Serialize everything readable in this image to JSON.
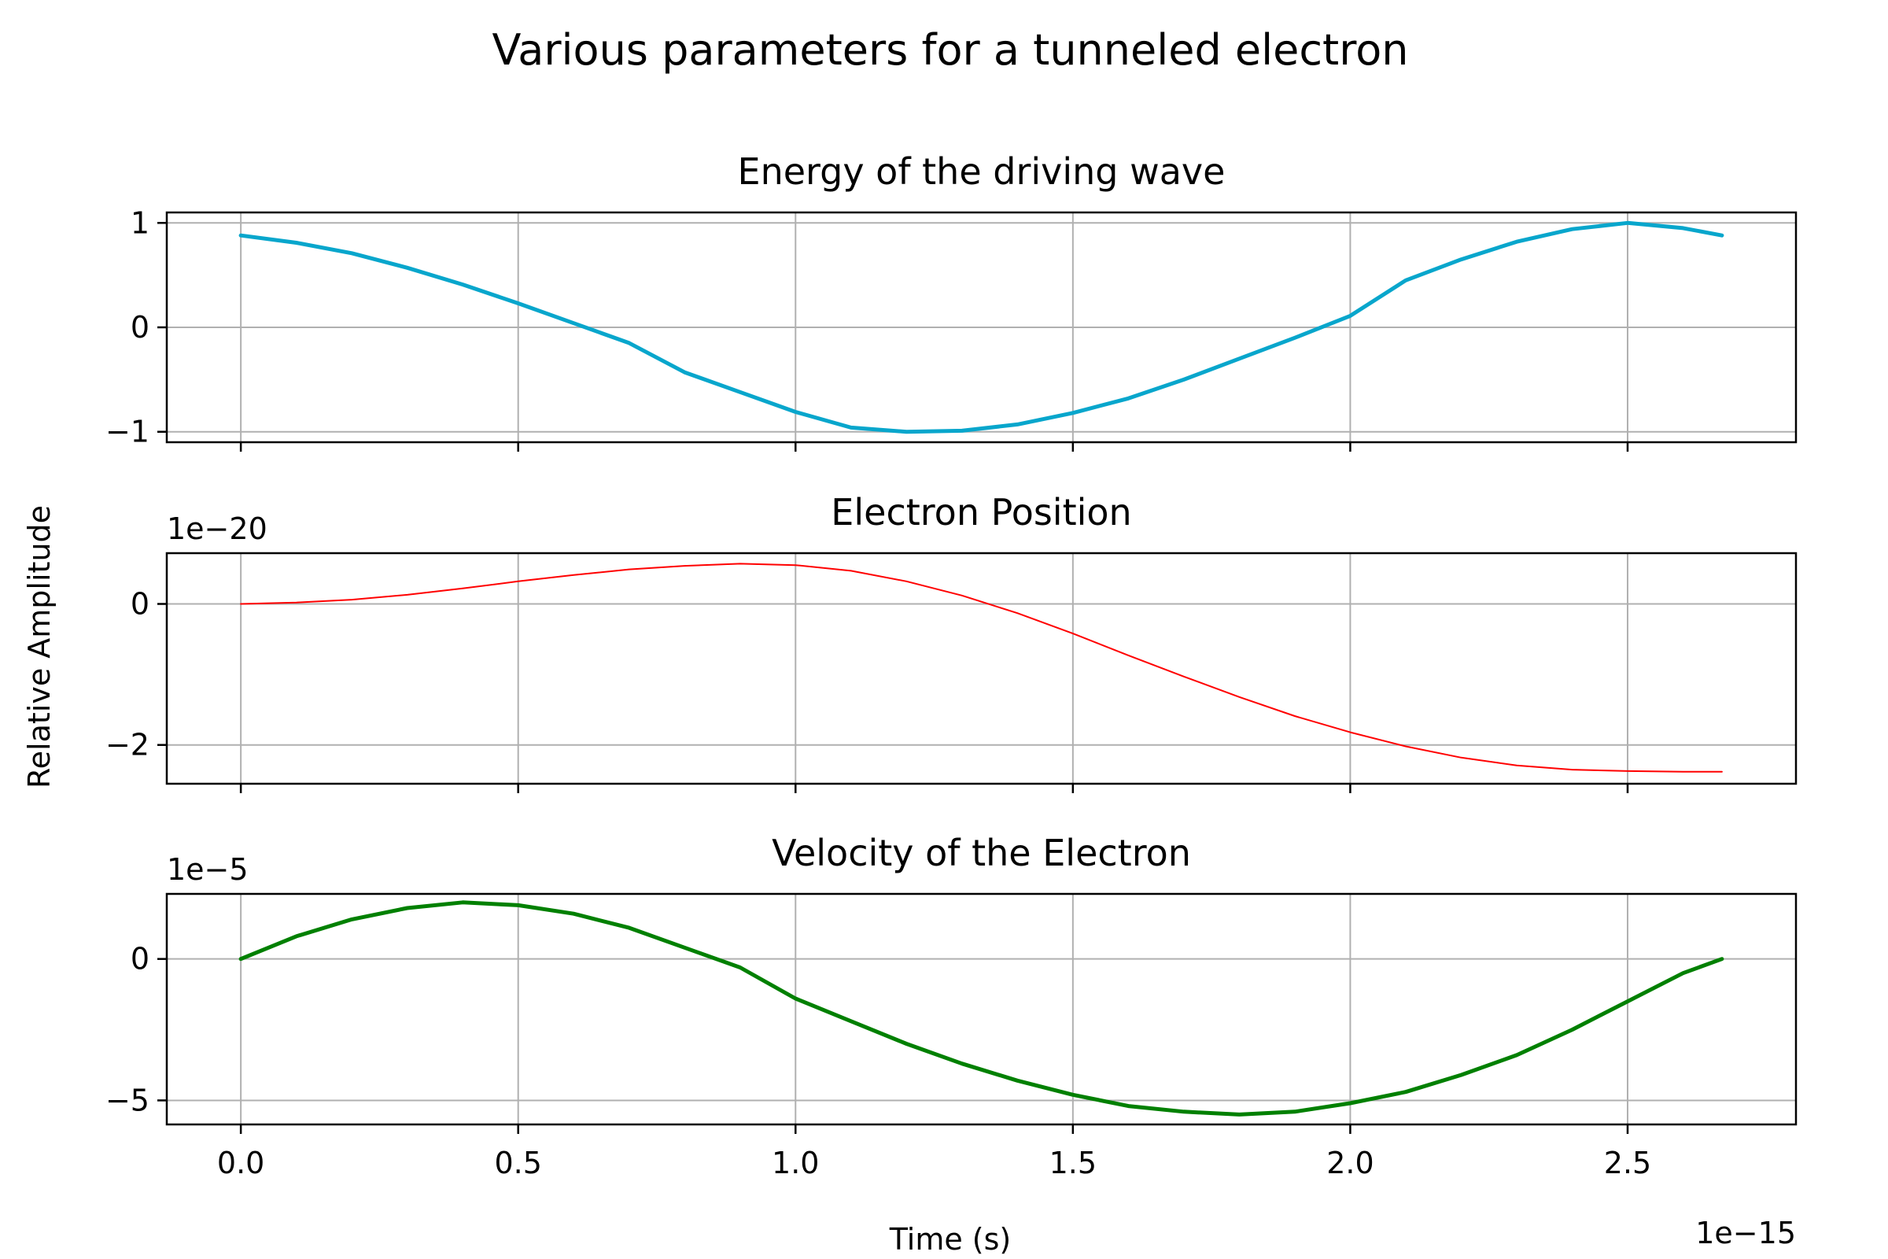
{
  "figure": {
    "suptitle": "Various parameters for a tunneled electron",
    "ylabel": "Relative Amplitude",
    "xlabel": "Time (s)",
    "x_offset_label": "1e−15"
  },
  "chart_data": [
    {
      "type": "line",
      "title": "Energy of the driving wave",
      "offset_label": "",
      "color": "#08a6cc",
      "xlim": [
        -0.1335,
        2.8035
      ],
      "ylim": [
        -1.1,
        1.1
      ],
      "xticks": [
        0.0,
        0.5,
        1.0,
        1.5,
        2.0,
        2.5
      ],
      "xtick_labels": [
        "0.0",
        "0.5",
        "1.0",
        "1.5",
        "2.0",
        "2.5"
      ],
      "yticks": [
        -1,
        0,
        1
      ],
      "ytick_labels": [
        "−1",
        "0",
        "1"
      ],
      "grid": true,
      "series": [
        {
          "x": [
            0.0,
            0.1,
            0.2,
            0.3,
            0.4,
            0.5,
            0.6,
            0.7,
            0.8,
            0.9,
            1.0,
            1.1,
            1.2,
            1.3,
            1.4,
            1.5,
            1.6,
            1.7,
            1.8,
            1.9,
            2.0,
            2.1,
            2.2,
            2.3,
            2.4,
            2.5,
            2.6,
            2.67
          ],
          "y": [
            0.88,
            0.81,
            0.71,
            0.57,
            0.41,
            0.23,
            0.04,
            -0.15,
            -0.43,
            -0.62,
            -0.81,
            -0.96,
            -1.0,
            -0.99,
            -0.93,
            -0.82,
            -0.68,
            -0.5,
            -0.3,
            -0.1,
            0.11,
            0.45,
            0.65,
            0.82,
            0.94,
            1.0,
            0.95,
            0.88
          ]
        }
      ]
    },
    {
      "type": "line",
      "title": "Electron Position",
      "offset_label": "1e−20",
      "color": "#ff0000",
      "xlim": [
        -0.1335,
        2.8035
      ],
      "ylim": [
        -2.55,
        0.72
      ],
      "xticks": [
        0.0,
        0.5,
        1.0,
        1.5,
        2.0,
        2.5
      ],
      "xtick_labels": [
        "0.0",
        "0.5",
        "1.0",
        "1.5",
        "2.0",
        "2.5"
      ],
      "yticks": [
        -2,
        0
      ],
      "ytick_labels": [
        "−2",
        "0"
      ],
      "grid": true,
      "series": [
        {
          "x": [
            0.0,
            0.1,
            0.2,
            0.3,
            0.4,
            0.5,
            0.6,
            0.7,
            0.8,
            0.9,
            1.0,
            1.1,
            1.2,
            1.3,
            1.4,
            1.5,
            1.6,
            1.7,
            1.8,
            1.9,
            2.0,
            2.1,
            2.2,
            2.3,
            2.4,
            2.5,
            2.6,
            2.67
          ],
          "y": [
            0.0,
            0.02,
            0.06,
            0.13,
            0.22,
            0.32,
            0.41,
            0.49,
            0.54,
            0.57,
            0.55,
            0.47,
            0.32,
            0.12,
            -0.13,
            -0.42,
            -0.73,
            -1.03,
            -1.32,
            -1.59,
            -1.82,
            -2.02,
            -2.18,
            -2.29,
            -2.35,
            -2.37,
            -2.38,
            -2.38
          ]
        }
      ]
    },
    {
      "type": "line",
      "title": "Velocity of the Electron",
      "offset_label": "1e−5",
      "color": "#008000",
      "xlim": [
        -0.1335,
        2.8035
      ],
      "ylim": [
        -5.85,
        2.3
      ],
      "xticks": [
        0.0,
        0.5,
        1.0,
        1.5,
        2.0,
        2.5
      ],
      "xtick_labels": [
        "0.0",
        "0.5",
        "1.0",
        "1.5",
        "2.0",
        "2.5"
      ],
      "yticks": [
        -5,
        0
      ],
      "ytick_labels": [
        "−5",
        "0"
      ],
      "grid": true,
      "series": [
        {
          "x": [
            0.0,
            0.1,
            0.2,
            0.3,
            0.4,
            0.5,
            0.6,
            0.7,
            0.8,
            0.9,
            1.0,
            1.1,
            1.2,
            1.3,
            1.4,
            1.5,
            1.6,
            1.7,
            1.8,
            1.9,
            2.0,
            2.1,
            2.2,
            2.3,
            2.4,
            2.5,
            2.6,
            2.67
          ],
          "y": [
            0.0,
            0.8,
            1.4,
            1.8,
            2.0,
            1.9,
            1.6,
            1.1,
            0.4,
            -0.3,
            -1.4,
            -2.2,
            -3.0,
            -3.7,
            -4.3,
            -4.8,
            -5.2,
            -5.4,
            -5.5,
            -5.4,
            -5.1,
            -4.7,
            -4.1,
            -3.4,
            -2.5,
            -1.5,
            -0.5,
            0.0
          ]
        }
      ]
    }
  ]
}
